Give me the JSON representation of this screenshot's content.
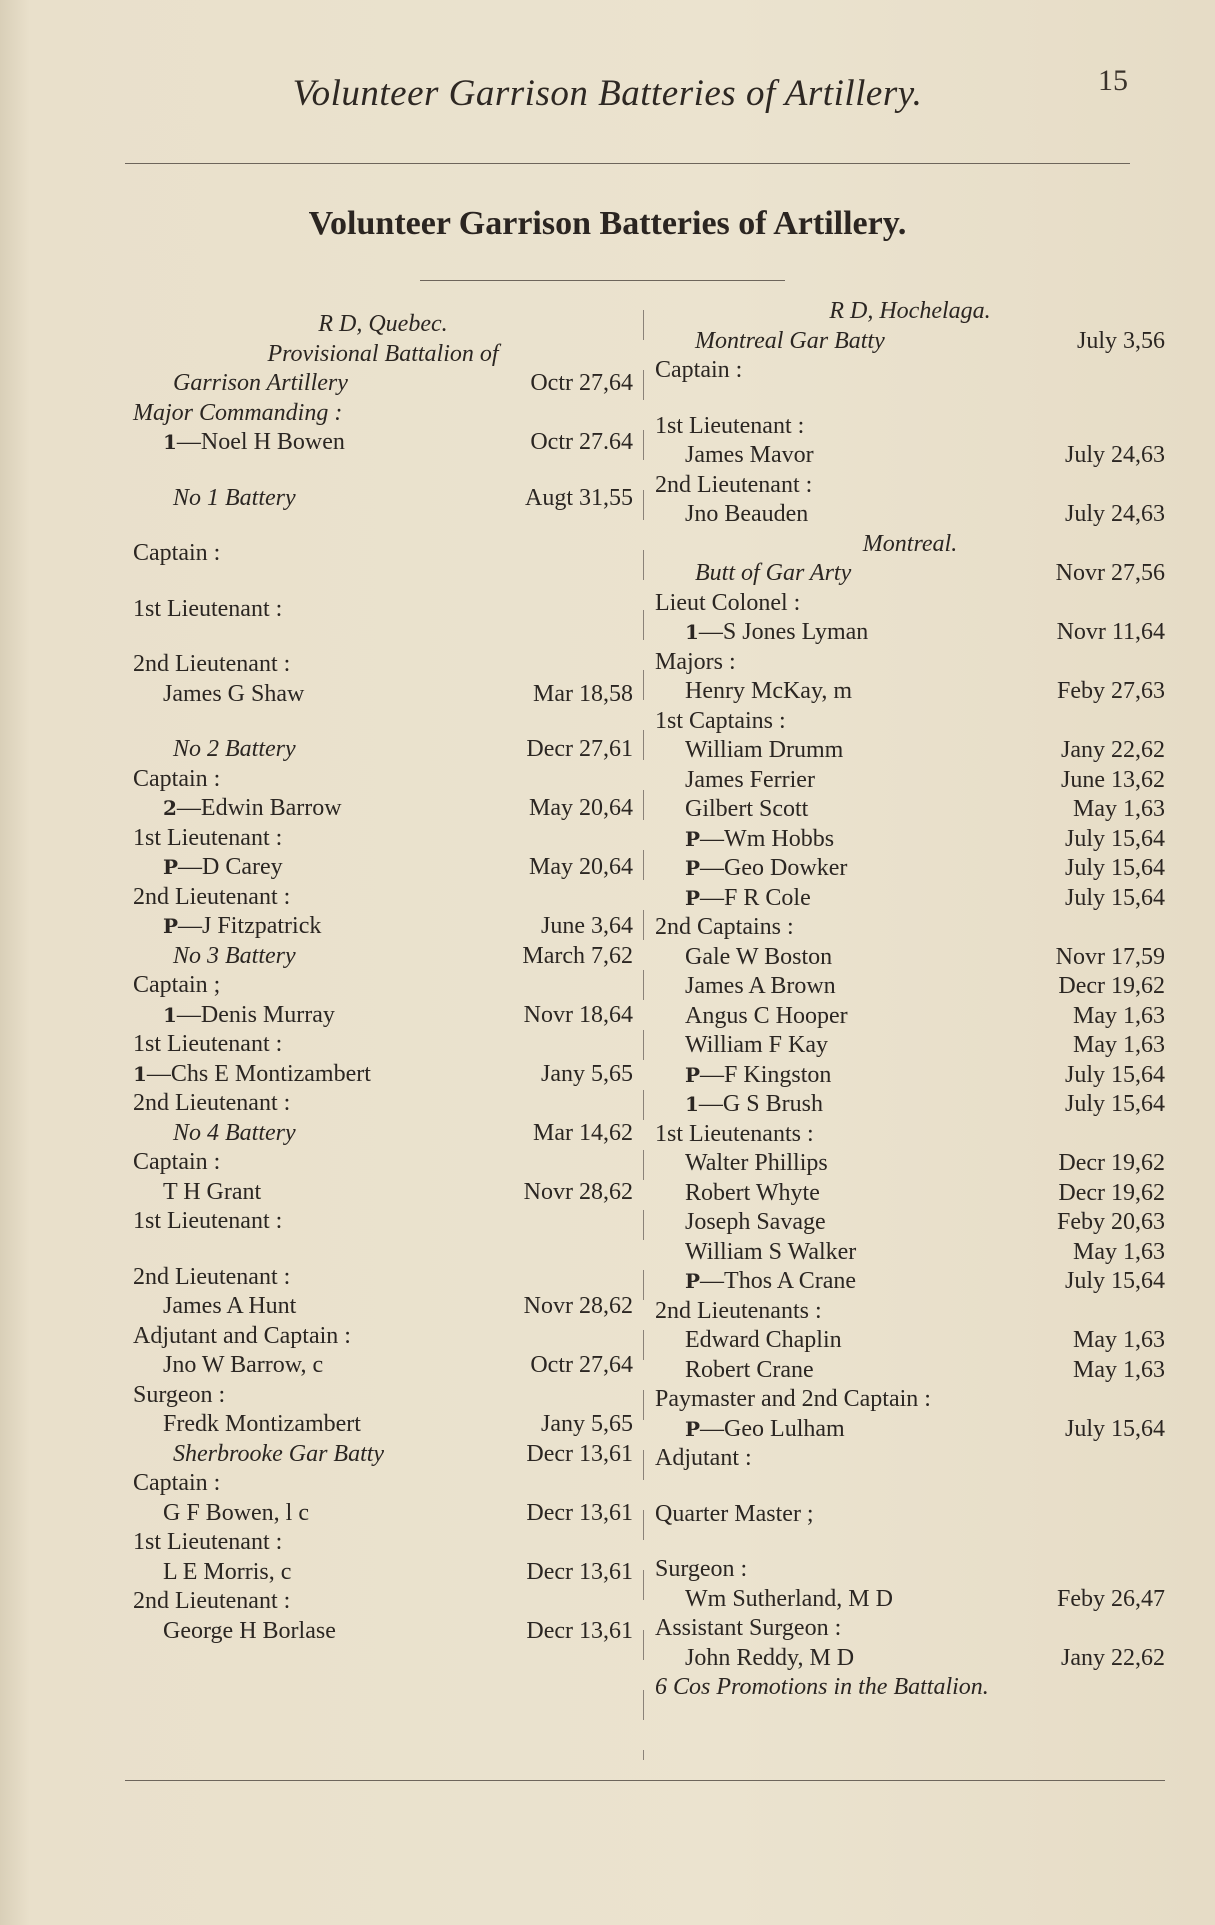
{
  "running_head": "Volunteer Garrison Batteries of Artillery.",
  "page_number": "15",
  "title": "Volunteer Garrison Batteries of Artillery.",
  "left": [
    {
      "k": "h",
      "n": "R  D, Quebec."
    },
    {
      "k": "h",
      "n": "Provisional  Battalion  of"
    },
    {
      "k": "s",
      "n": "Garrison Artillery",
      "d": "Octr  27,64"
    },
    {
      "k": "i",
      "n": "Major Commanding :"
    },
    {
      "k": "e",
      "m": "1",
      "n": "—Noel H Bowen",
      "d": "Octr  27.64"
    },
    {
      "k": "g"
    },
    {
      "k": "s",
      "n": "No 1 Battery",
      "d": "Augt 31,55"
    },
    {
      "k": "g"
    },
    {
      "k": "l",
      "n": "Captain :"
    },
    {
      "k": "g"
    },
    {
      "k": "l",
      "n": "1st Lieutenant :"
    },
    {
      "k": "g"
    },
    {
      "k": "l",
      "n": "2nd Lieutenant :"
    },
    {
      "k": "e",
      "n": "James G Shaw",
      "d": "Mar  18,58"
    },
    {
      "k": "g"
    },
    {
      "k": "s",
      "n": "No 2 Battery",
      "d": "Decr 27,61"
    },
    {
      "k": "l",
      "n": "Captain :"
    },
    {
      "k": "e",
      "m": "2",
      "n": "—Edwin Barrow",
      "d": "May  20,64"
    },
    {
      "k": "l",
      "n": "1st Lieutenant :"
    },
    {
      "k": "e",
      "m": "P",
      "n": "—D Carey",
      "d": "May  20,64"
    },
    {
      "k": "l",
      "n": "2nd Lieutenant :"
    },
    {
      "k": "e",
      "m": "P",
      "n": "—J Fitzpatrick",
      "d": "June  3,64"
    },
    {
      "k": "s",
      "n": "No 3 Battery",
      "d": "March 7,62"
    },
    {
      "k": "l",
      "n": "Captain ;"
    },
    {
      "k": "e",
      "m": "1",
      "n": "—Denis Murray",
      "d": "Novr 18,64"
    },
    {
      "k": "l",
      "n": "1st Lieutenant :"
    },
    {
      "k": "l",
      "m": "1",
      "n": "—Chs E Montizambert",
      "d": "Jany  5,65"
    },
    {
      "k": "l",
      "n": "2nd Lieutenant :"
    },
    {
      "k": "s",
      "n": "No 4 Battery",
      "d": "Mar  14,62"
    },
    {
      "k": "l",
      "n": "Captain :"
    },
    {
      "k": "e",
      "n": "T H Grant",
      "d": "Novr 28,62"
    },
    {
      "k": "l",
      "n": "1st Lieutenant :"
    },
    {
      "k": "g"
    },
    {
      "k": "l",
      "n": "2nd Lieutenant :"
    },
    {
      "k": "e",
      "n": "James A Hunt",
      "d": "Novr 28,62"
    },
    {
      "k": "l",
      "n": "Adjutant and Captain :"
    },
    {
      "k": "e",
      "n": "Jno W Barrow, c",
      "d": "Octr  27,64"
    },
    {
      "k": "l",
      "n": "Surgeon :"
    },
    {
      "k": "e",
      "n": "Fredk Montizambert",
      "d": "Jany  5,65"
    },
    {
      "k": "s",
      "n": "Sherbrooke Gar  Batty",
      "d": "Decr 13,61"
    },
    {
      "k": "l",
      "n": "Captain :"
    },
    {
      "k": "e",
      "n": "G F Bowen, l c",
      "d": "Decr 13,61"
    },
    {
      "k": "l",
      "n": "1st Lieutenant :"
    },
    {
      "k": "e",
      "n": "L E Morris, c",
      "d": "Decr 13,61"
    },
    {
      "k": "l",
      "n": "2nd Lieutenant :"
    },
    {
      "k": "e",
      "n": "George H Borlase",
      "d": "Decr 13,61"
    }
  ],
  "right": [
    {
      "k": "h",
      "n": "R  D, Hochelaga."
    },
    {
      "k": "s",
      "n": "Montreal Gar Batty",
      "d": "July  3,56"
    },
    {
      "k": "l",
      "n": "Captain :"
    },
    {
      "k": "g"
    },
    {
      "k": "l",
      "n": "1st Lieutenant :"
    },
    {
      "k": "e",
      "n": "James Mavor",
      "d": "July  24,63"
    },
    {
      "k": "l",
      "n": "2nd Lieutenant :"
    },
    {
      "k": "e",
      "n": "Jno Beauden",
      "d": "July  24,63"
    },
    {
      "k": "h",
      "n": "Montreal."
    },
    {
      "k": "s",
      "n": "Butt of Gar Arty",
      "d": "Novr 27,56"
    },
    {
      "k": "l",
      "n": "Lieut Colonel :"
    },
    {
      "k": "e",
      "m": "1",
      "n": "—S Jones Lyman",
      "d": "Novr 11,64"
    },
    {
      "k": "l",
      "n": "Majors :"
    },
    {
      "k": "e",
      "n": "Henry McKay, m",
      "d": "Feby 27,63"
    },
    {
      "k": "l",
      "n": "1st Captains :"
    },
    {
      "k": "e",
      "n": "William Drumm",
      "d": "Jany 22,62"
    },
    {
      "k": "e",
      "n": "James Ferrier",
      "d": "June 13,62"
    },
    {
      "k": "e",
      "n": "Gilbert Scott",
      "d": "May  1,63"
    },
    {
      "k": "e",
      "m": "P",
      "n": "—Wm Hobbs",
      "d": "July  15,64"
    },
    {
      "k": "e",
      "m": "P",
      "n": "—Geo Dowker",
      "d": "July  15,64"
    },
    {
      "k": "e",
      "m": "P",
      "n": "—F R Cole",
      "d": "July  15,64"
    },
    {
      "k": "l",
      "n": "2nd Captains :"
    },
    {
      "k": "e",
      "n": "Gale W Boston",
      "d": "Novr 17,59"
    },
    {
      "k": "e",
      "n": "James A Brown",
      "d": "Decr 19,62"
    },
    {
      "k": "e",
      "n": "Angus C Hooper",
      "d": "May  1,63"
    },
    {
      "k": "e",
      "n": "William F Kay",
      "d": "May  1,63"
    },
    {
      "k": "e",
      "m": "P",
      "n": "—F Kingston",
      "d": "July  15,64"
    },
    {
      "k": "e",
      "m": "1",
      "n": "—G S Brush",
      "d": "July  15,64"
    },
    {
      "k": "l",
      "n": "1st Lieutenants :"
    },
    {
      "k": "e",
      "n": "Walter Phillips",
      "d": "Decr 19,62"
    },
    {
      "k": "e",
      "n": "Robert Whyte",
      "d": "Decr 19,62"
    },
    {
      "k": "e",
      "n": "Joseph Savage",
      "d": "Feby 20,63"
    },
    {
      "k": "e",
      "n": "William S Walker",
      "d": "May  1,63"
    },
    {
      "k": "e",
      "m": "P",
      "n": "—Thos A Crane",
      "d": "July  15,64"
    },
    {
      "k": "l",
      "n": "2nd Lieutenants :"
    },
    {
      "k": "e",
      "n": "Edward Chaplin",
      "d": "May  1,63"
    },
    {
      "k": "e",
      "n": "Robert Crane",
      "d": "May  1,63"
    },
    {
      "k": "l",
      "n": "Paymaster and 2nd Captain :"
    },
    {
      "k": "e",
      "m": "P",
      "n": "—Geo Lulham",
      "d": "July  15,64"
    },
    {
      "k": "l",
      "n": "Adjutant :"
    },
    {
      "k": "g"
    },
    {
      "k": "l",
      "n": "Quarter Master ;"
    },
    {
      "k": "g"
    },
    {
      "k": "l",
      "n": "Surgeon :"
    },
    {
      "k": "e",
      "n": "Wm Sutherland, M D",
      "d": "Feby 26,47"
    },
    {
      "k": "l",
      "n": "Assistant Surgeon :"
    },
    {
      "k": "e",
      "n": "John Reddy, M D",
      "d": "Jany 22,62"
    },
    {
      "k": "i",
      "n": "6 Cos Promotions in the Battalion."
    }
  ]
}
